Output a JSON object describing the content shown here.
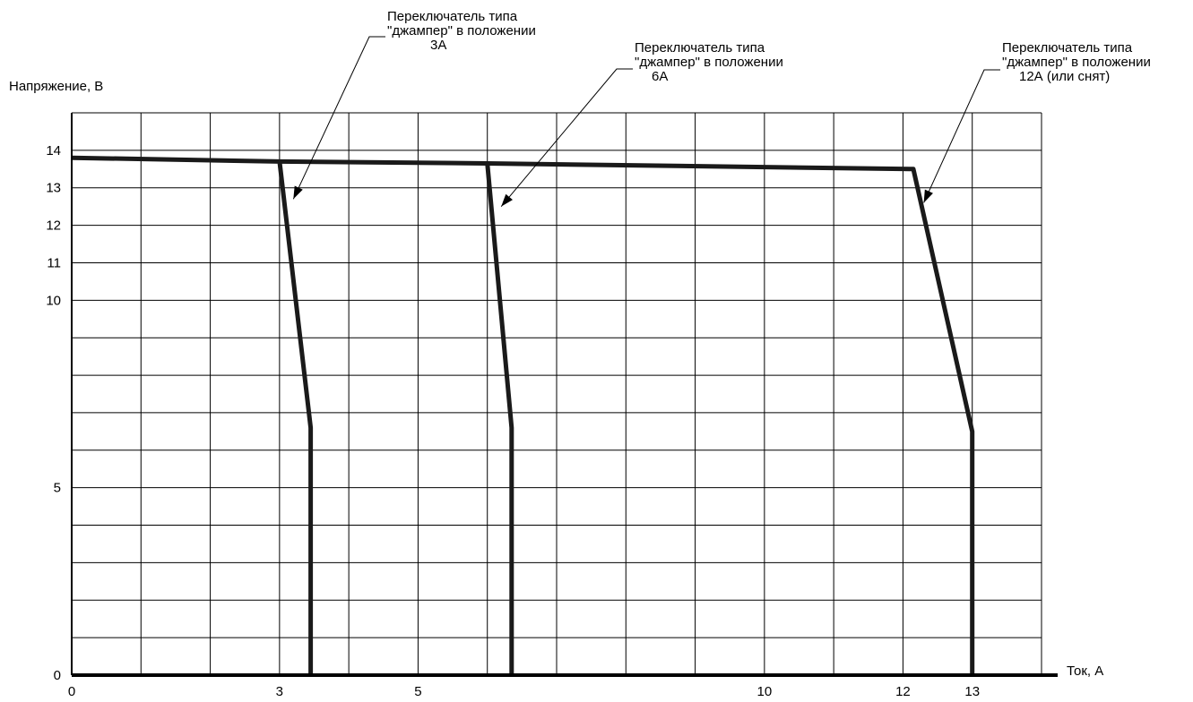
{
  "chart_data": {
    "type": "line",
    "ylabel": "Напряжение, В",
    "xlabel": "Ток, А",
    "x_ticks": [
      {
        "value": 0,
        "label": "0"
      },
      {
        "value": 3,
        "label": "3"
      },
      {
        "value": 5,
        "label": "5"
      },
      {
        "value": 10,
        "label": "10"
      },
      {
        "value": 12,
        "label": "12"
      },
      {
        "value": 13,
        "label": "13"
      }
    ],
    "y_ticks": [
      {
        "value": 0,
        "label": "0"
      },
      {
        "value": 5,
        "label": "5"
      },
      {
        "value": 10,
        "label": "10"
      },
      {
        "value": 11,
        "label": "11"
      },
      {
        "value": 12,
        "label": "12"
      },
      {
        "value": 13,
        "label": "13"
      },
      {
        "value": 14,
        "label": "14"
      }
    ],
    "xlim": [
      0,
      14
    ],
    "ylim": [
      0,
      15
    ],
    "grid": true,
    "series": [
      {
        "points": [
          [
            0,
            13.8
          ],
          [
            3.0,
            13.7
          ],
          [
            3.45,
            6.6
          ],
          [
            3.45,
            0
          ]
        ]
      },
      {
        "points": [
          [
            3.0,
            13.7
          ],
          [
            6.0,
            13.65
          ],
          [
            6.35,
            6.6
          ],
          [
            6.35,
            0
          ]
        ]
      },
      {
        "points": [
          [
            6.0,
            13.65
          ],
          [
            12.1,
            13.5
          ],
          [
            12.15,
            13.5
          ],
          [
            13.0,
            6.5
          ],
          [
            13.0,
            0
          ]
        ]
      }
    ],
    "annotations": [
      {
        "lines": [
          "Переключатель типа",
          "\"джампер\" в положении",
          "3А"
        ],
        "x": 3.2,
        "y": 12.7
      },
      {
        "lines": [
          "Переключатель типа",
          "\"джампер\" в положении",
          "6А"
        ],
        "x": 6.2,
        "y": 12.5
      },
      {
        "lines": [
          "Переключатель типа",
          "\"джампер\" в положении",
          "12А (или снят)"
        ],
        "x": 12.3,
        "y": 12.6
      }
    ]
  }
}
